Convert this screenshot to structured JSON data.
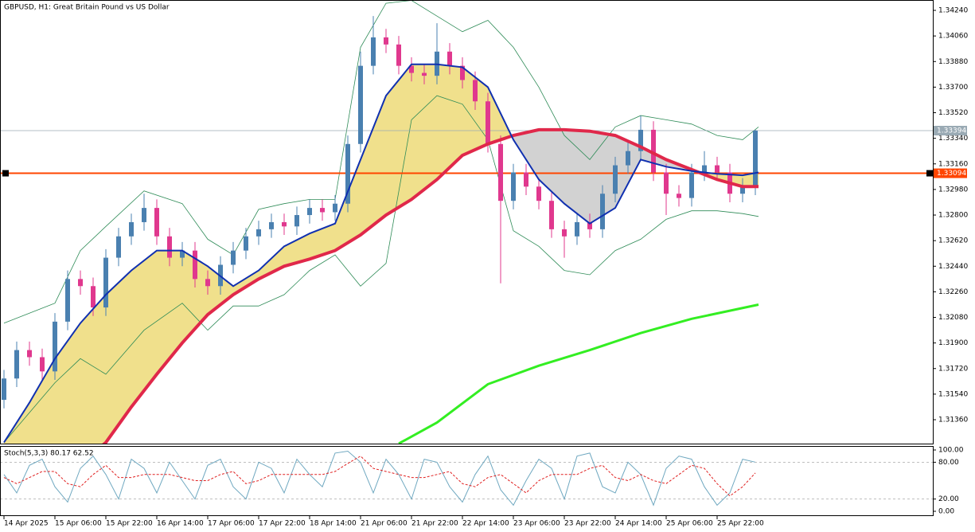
{
  "chart_data": [
    {
      "type": "candlestick",
      "title": "GBPUSD, H1:  Great Britain Pound vs US Dollar",
      "up_color": "#4a80b0",
      "down_color": "#e0388e",
      "xlim": [
        -1.25,
        291.75
      ],
      "ylim": [
        1.31192,
        1.34313
      ],
      "yticks": [
        {
          "value": 1.3424,
          "label": "1.34240"
        },
        {
          "value": 1.3406,
          "label": "1.34060"
        },
        {
          "value": 1.3388,
          "label": "1.33880"
        },
        {
          "value": 1.337,
          "label": "1.33700"
        },
        {
          "value": 1.3352,
          "label": "1.33520"
        },
        {
          "value": 1.3334,
          "label": "1.33340"
        },
        {
          "value": 1.3316,
          "label": "1.33160"
        },
        {
          "value": 1.3298,
          "label": "1.32980"
        },
        {
          "value": 1.328,
          "label": "1.32800"
        },
        {
          "value": 1.3262,
          "label": "1.32620"
        },
        {
          "value": 1.3244,
          "label": "1.32440"
        },
        {
          "value": 1.3226,
          "label": "1.32260"
        },
        {
          "value": 1.3208,
          "label": "1.32080"
        },
        {
          "value": 1.319,
          "label": "1.31900"
        },
        {
          "value": 1.3172,
          "label": "1.31720"
        },
        {
          "value": 1.3154,
          "label": "1.31540"
        },
        {
          "value": 1.3136,
          "label": "1.31360"
        }
      ],
      "x": [
        0,
        4,
        8,
        12,
        16,
        20,
        24,
        28,
        32,
        36,
        40,
        44,
        48,
        52,
        56,
        60,
        64,
        68,
        72,
        76,
        80,
        84,
        88,
        92,
        96,
        100,
        104,
        108,
        112,
        116,
        120,
        124,
        128,
        132,
        136,
        140,
        144,
        148,
        152,
        156,
        160,
        164,
        168,
        172,
        176,
        180,
        184,
        188,
        192,
        196,
        200,
        204,
        208,
        212,
        216,
        220,
        224,
        228,
        232,
        236
      ],
      "open": [
        1.315,
        1.3165,
        1.3185,
        1.318,
        1.317,
        1.3205,
        1.3235,
        1.323,
        1.3215,
        1.325,
        1.3265,
        1.3275,
        1.3285,
        1.3265,
        1.325,
        1.3255,
        1.3235,
        1.323,
        1.3245,
        1.3255,
        1.3265,
        1.327,
        1.3275,
        1.3272,
        1.328,
        1.3285,
        1.3282,
        1.3288,
        1.333,
        1.3385,
        1.3405,
        1.34,
        1.3385,
        1.338,
        1.3378,
        1.3395,
        1.3385,
        1.3375,
        1.336,
        1.333,
        1.329,
        1.331,
        1.33,
        1.329,
        1.327,
        1.3265,
        1.3275,
        1.327,
        1.3295,
        1.3315,
        1.3325,
        1.334,
        1.331,
        1.3295,
        1.3292,
        1.331,
        1.3315,
        1.331,
        1.3295,
        1.33
      ],
      "high": [
        1.3171,
        1.3191,
        1.3191,
        1.3186,
        1.3211,
        1.3241,
        1.3241,
        1.3236,
        1.3256,
        1.3271,
        1.3281,
        1.3295,
        1.3291,
        1.3271,
        1.3261,
        1.3261,
        1.3241,
        1.3251,
        1.3261,
        1.3271,
        1.3276,
        1.3281,
        1.3281,
        1.3286,
        1.3291,
        1.3291,
        1.3294,
        1.3336,
        1.3395,
        1.342,
        1.3411,
        1.3406,
        1.3391,
        1.3386,
        1.3415,
        1.3401,
        1.3391,
        1.3381,
        1.3366,
        1.3336,
        1.3316,
        1.3316,
        1.3306,
        1.3296,
        1.3276,
        1.3281,
        1.3281,
        1.3301,
        1.3321,
        1.3331,
        1.335,
        1.3346,
        1.3316,
        1.3301,
        1.3316,
        1.3325,
        1.3321,
        1.3316,
        1.3306,
        1.334
      ],
      "low": [
        1.3144,
        1.3159,
        1.3174,
        1.3164,
        1.3164,
        1.3199,
        1.3224,
        1.3209,
        1.3209,
        1.3244,
        1.3259,
        1.3269,
        1.3259,
        1.3244,
        1.3244,
        1.3229,
        1.3224,
        1.3224,
        1.3239,
        1.3249,
        1.3259,
        1.3264,
        1.3266,
        1.3266,
        1.3274,
        1.3276,
        1.3276,
        1.3282,
        1.3324,
        1.3379,
        1.3394,
        1.3379,
        1.3374,
        1.3372,
        1.3372,
        1.3379,
        1.3369,
        1.3354,
        1.3324,
        1.3232,
        1.3284,
        1.3294,
        1.3284,
        1.3264,
        1.325,
        1.3259,
        1.3264,
        1.3264,
        1.3289,
        1.3309,
        1.3319,
        1.3304,
        1.328,
        1.3286,
        1.3286,
        1.3304,
        1.3304,
        1.3289,
        1.3289,
        1.3294
      ],
      "close": [
        1.3165,
        1.3185,
        1.318,
        1.317,
        1.3205,
        1.3235,
        1.323,
        1.3215,
        1.325,
        1.3265,
        1.3275,
        1.3285,
        1.3265,
        1.325,
        1.3255,
        1.3235,
        1.323,
        1.3245,
        1.3255,
        1.3265,
        1.327,
        1.3275,
        1.3272,
        1.328,
        1.3285,
        1.3282,
        1.3288,
        1.333,
        1.3385,
        1.3405,
        1.34,
        1.3385,
        1.338,
        1.3378,
        1.3395,
        1.3385,
        1.3375,
        1.336,
        1.333,
        1.329,
        1.331,
        1.33,
        1.329,
        1.327,
        1.3265,
        1.3275,
        1.327,
        1.3295,
        1.3315,
        1.3325,
        1.334,
        1.331,
        1.3295,
        1.3292,
        1.331,
        1.3315,
        1.331,
        1.3295,
        1.33,
        1.33394
      ],
      "bands": {
        "color": "#2e8b57",
        "x": [
          0,
          16,
          24,
          32,
          44,
          56,
          64,
          72,
          80,
          88,
          96,
          104,
          112,
          120,
          128,
          136,
          144,
          152,
          160,
          168,
          176,
          184,
          192,
          200,
          208,
          216,
          224,
          232,
          237
        ],
        "upper": [
          1.3204,
          1.3218,
          1.3255,
          1.3272,
          1.3297,
          1.3288,
          1.3263,
          1.3252,
          1.3284,
          1.3288,
          1.3291,
          1.3291,
          1.3398,
          1.3429,
          1.3431,
          1.342,
          1.3409,
          1.3417,
          1.3398,
          1.337,
          1.3336,
          1.3319,
          1.3342,
          1.335,
          1.3347,
          1.3344,
          1.3336,
          1.3333,
          1.3342
        ],
        "lower": [
          1.312,
          1.3162,
          1.3179,
          1.3168,
          1.3199,
          1.3218,
          1.3199,
          1.3216,
          1.3216,
          1.3224,
          1.3241,
          1.3252,
          1.323,
          1.3246,
          1.3347,
          1.3364,
          1.3358,
          1.3333,
          1.3269,
          1.3258,
          1.3241,
          1.3238,
          1.3255,
          1.3263,
          1.3277,
          1.3283,
          1.3283,
          1.3281,
          1.3279
        ]
      },
      "cloud": {
        "up_color": "#f0e08c",
        "down_color": "#d2d2d2",
        "x": [
          0,
          8,
          16,
          24,
          32,
          40,
          48,
          56,
          64,
          72,
          80,
          88,
          96,
          104,
          112,
          120,
          128,
          136,
          144,
          152,
          160,
          168,
          176,
          184,
          192,
          200,
          208,
          216,
          224,
          232,
          237
        ],
        "fast": {
          "color": "#1030b0",
          "values": [
            1.312,
            1.3148,
            1.3179,
            1.3204,
            1.3224,
            1.3241,
            1.3255,
            1.3255,
            1.3244,
            1.323,
            1.3241,
            1.3258,
            1.3267,
            1.3274,
            1.3319,
            1.3364,
            1.3386,
            1.3386,
            1.3384,
            1.337,
            1.3333,
            1.3305,
            1.3288,
            1.3274,
            1.3285,
            1.3319,
            1.3314,
            1.3311,
            1.3309,
            1.3308,
            1.331
          ]
        },
        "slow": {
          "color": "#e0284a",
          "values": [
            1.306,
            1.3075,
            1.309,
            1.3105,
            1.312,
            1.3145,
            1.3168,
            1.319,
            1.321,
            1.3224,
            1.3235,
            1.3244,
            1.3249,
            1.3255,
            1.3266,
            1.328,
            1.3291,
            1.3305,
            1.3322,
            1.333,
            1.3336,
            1.334,
            1.334,
            1.3339,
            1.3336,
            1.3328,
            1.3319,
            1.3312,
            1.3305,
            1.33,
            1.33
          ]
        }
      },
      "long_ma": {
        "color": "#33ee22",
        "x": [
          124,
          136,
          152,
          168,
          184,
          200,
          216,
          237
        ],
        "values": [
          1.31192,
          1.3134,
          1.3161,
          1.3174,
          1.3185,
          1.3197,
          1.3207,
          1.3217
        ]
      },
      "price_lines": [
        {
          "value": 1.33394,
          "color": "#9aaab4"
        },
        {
          "value": 1.33094,
          "color": "#ff4500"
        }
      ]
    },
    {
      "type": "line",
      "title": "Stoch(5,3,3) 80.17 62.52",
      "xlim": [
        -1.25,
        291.75
      ],
      "ylim": [
        -6.5,
        105.2
      ],
      "yticks": [
        {
          "value": 100,
          "label": "100.00"
        },
        {
          "value": 80,
          "label": "80.00"
        },
        {
          "value": 20,
          "label": "20.00"
        },
        {
          "value": 0,
          "label": "0.00"
        }
      ],
      "levels": [
        80,
        20
      ],
      "xticks": [
        {
          "value": 0,
          "label": "14 Apr 2025"
        },
        {
          "value": 16,
          "label": "15 Apr 06:00"
        },
        {
          "value": 32,
          "label": "15 Apr 22:00"
        },
        {
          "value": 48,
          "label": "16 Apr 14:00"
        },
        {
          "value": 64,
          "label": "17 Apr 06:00"
        },
        {
          "value": 80,
          "label": "17 Apr 22:00"
        },
        {
          "value": 96,
          "label": "18 Apr 14:00"
        },
        {
          "value": 112,
          "label": "21 Apr 06:00"
        },
        {
          "value": 128,
          "label": "21 Apr 22:00"
        },
        {
          "value": 144,
          "label": "22 Apr 14:00"
        },
        {
          "value": 160,
          "label": "23 Apr 06:00"
        },
        {
          "value": 176,
          "label": "23 Apr 22:00"
        },
        {
          "value": 192,
          "label": "24 Apr 14:00"
        },
        {
          "value": 208,
          "label": "25 Apr 06:00"
        },
        {
          "value": 224,
          "label": "25 Apr 22:00"
        }
      ],
      "x": [
        0,
        4,
        8,
        12,
        16,
        20,
        24,
        28,
        32,
        36,
        40,
        44,
        48,
        52,
        56,
        60,
        64,
        68,
        72,
        76,
        80,
        84,
        88,
        92,
        96,
        100,
        104,
        108,
        112,
        116,
        120,
        124,
        128,
        132,
        136,
        140,
        144,
        148,
        152,
        156,
        160,
        164,
        168,
        172,
        176,
        180,
        184,
        188,
        192,
        196,
        200,
        204,
        208,
        212,
        216,
        220,
        224,
        228,
        232,
        236
      ],
      "series": [
        {
          "color": "#6fa8c0",
          "dash": false,
          "values": [
            60,
            30,
            75,
            85,
            40,
            15,
            70,
            90,
            60,
            20,
            85,
            70,
            30,
            80,
            50,
            20,
            75,
            85,
            40,
            20,
            80,
            70,
            30,
            85,
            60,
            40,
            95,
            98,
            80,
            30,
            85,
            60,
            20,
            85,
            80,
            40,
            15,
            60,
            90,
            35,
            10,
            50,
            85,
            70,
            20,
            90,
            95,
            40,
            30,
            80,
            60,
            10,
            70,
            90,
            85,
            40,
            10,
            30,
            85,
            80.17
          ]
        },
        {
          "color": "#e02020",
          "dash": true,
          "values": [
            55,
            45,
            55,
            65,
            65,
            45,
            40,
            60,
            75,
            55,
            55,
            60,
            60,
            60,
            55,
            50,
            50,
            60,
            65,
            45,
            50,
            60,
            60,
            60,
            60,
            60,
            65,
            78,
            90,
            70,
            65,
            60,
            55,
            55,
            60,
            65,
            45,
            40,
            55,
            60,
            45,
            30,
            50,
            60,
            60,
            60,
            70,
            75,
            55,
            50,
            60,
            50,
            45,
            60,
            75,
            70,
            45,
            25,
            40,
            62.52
          ]
        }
      ]
    }
  ]
}
